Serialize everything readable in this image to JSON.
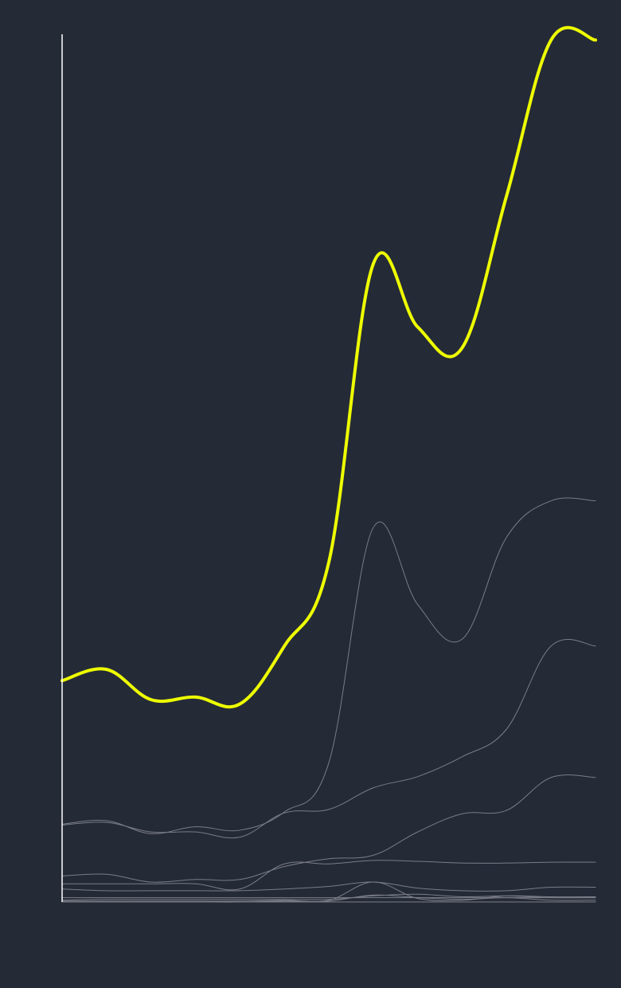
{
  "colors": {
    "background": "#252a37",
    "axis": "#ffffff",
    "highlight": "#eeff00",
    "muted": "#7a7d86"
  },
  "chart_data": {
    "type": "line",
    "title": "",
    "xlabel": "",
    "ylabel": "",
    "grid": false,
    "legend": "none",
    "ylim": [
      0,
      100
    ],
    "x": [
      0,
      1,
      2,
      3,
      4,
      5,
      6,
      7,
      8,
      9,
      10,
      11,
      12
    ],
    "series": [
      {
        "highlight": true,
        "values": [
          25.6,
          26.9,
          23.4,
          23.7,
          22.9,
          29.6,
          39.3,
          73.8,
          66.5,
          64.1,
          81.7,
          99.7,
          99.7
        ]
      },
      {
        "highlight": false,
        "values": [
          9.0,
          9.4,
          7.9,
          8.7,
          8.3,
          10.4,
          16.1,
          43.3,
          34.4,
          30.4,
          42.2,
          46.4,
          46.4
        ]
      },
      {
        "highlight": false,
        "values": [
          8.9,
          9.2,
          8.1,
          8.1,
          7.5,
          10.3,
          10.7,
          13.2,
          14.5,
          16.8,
          20.0,
          29.6,
          29.6
        ]
      },
      {
        "highlight": false,
        "values": [
          3.0,
          3.2,
          2.3,
          2.6,
          2.6,
          4.1,
          5.0,
          5.4,
          8.1,
          10.2,
          10.6,
          14.4,
          14.4
        ]
      },
      {
        "highlight": false,
        "values": [
          2.1,
          2.1,
          2.1,
          2.1,
          1.5,
          4.4,
          4.4,
          4.8,
          4.7,
          4.5,
          4.5,
          4.6,
          4.6
        ]
      },
      {
        "highlight": false,
        "values": [
          1.5,
          1.3,
          1.3,
          1.3,
          1.3,
          1.5,
          1.8,
          2.3,
          1.6,
          1.3,
          1.3,
          1.7,
          1.7
        ]
      },
      {
        "highlight": false,
        "values": [
          0.1,
          0.1,
          0.1,
          0.1,
          0.1,
          0.2,
          0.2,
          2.3,
          0.4,
          0.2,
          0.7,
          0.6,
          0.6
        ]
      },
      {
        "highlight": false,
        "values": [
          0.0,
          0.0,
          0.0,
          0.0,
          0.0,
          0.1,
          0.1,
          0.8,
          0.5,
          0.3,
          0.5,
          0.2,
          0.2
        ]
      },
      {
        "highlight": false,
        "values": [
          0.2,
          0.3,
          0.3,
          0.3,
          0.3,
          0.3,
          0.3,
          0.7,
          0.9,
          0.6,
          0.7,
          0.5,
          0.5
        ]
      },
      {
        "highlight": false,
        "values": [
          0.5,
          0.5,
          0.5,
          0.5,
          0.5,
          0.5,
          0.5,
          0.5,
          0.5,
          0.5,
          0.5,
          0.5,
          0.5
        ]
      },
      {
        "highlight": false,
        "values": [
          0.0,
          0.0,
          0.0,
          0.0,
          0.0,
          0.0,
          0.0,
          0.0,
          0.0,
          0.0,
          0.0,
          0.0,
          0.0
        ]
      }
    ]
  }
}
